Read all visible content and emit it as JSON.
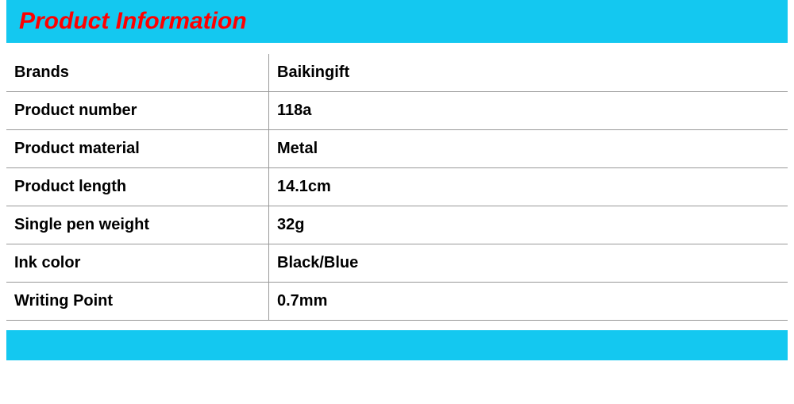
{
  "header": {
    "title": "Product Information",
    "background_color": "#14c8f0",
    "title_color": "#ff0000",
    "title_fontsize": 30,
    "title_font_style": "italic",
    "title_font_weight": "bold"
  },
  "table": {
    "type": "table",
    "columns": [
      "Label",
      "Value"
    ],
    "label_col_width": 310,
    "rows": [
      {
        "label": "Brands",
        "value": "Baikingift"
      },
      {
        "label": "Product number",
        "value": "118a"
      },
      {
        "label": "Product material",
        "value": "Metal"
      },
      {
        "label": "Product length",
        "value": "14.1cm"
      },
      {
        "label": "Single pen weight",
        "value": "32g"
      },
      {
        "label": "Ink color",
        "value": "Black/Blue"
      },
      {
        "label": "Writing Point",
        "value": "0.7mm"
      }
    ],
    "cell_fontsize": 20,
    "cell_font_weight": "bold",
    "cell_color": "#000000",
    "border_color": "#999999",
    "background_color": "#ffffff"
  },
  "footer": {
    "background_color": "#14c8f0",
    "height": 38
  }
}
